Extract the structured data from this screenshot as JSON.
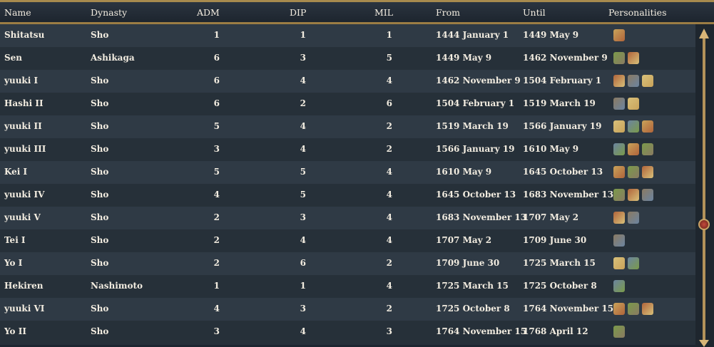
{
  "headers": {
    "name": "Name",
    "dynasty": "Dynasty",
    "adm": "ADM",
    "dip": "DIP",
    "mil": "MIL",
    "from": "From",
    "until": "Until",
    "personalities": "Personalities"
  },
  "rows": [
    {
      "name": "Shitatsu",
      "dynasty": "Sho",
      "adm": "1",
      "dip": "1",
      "mil": "1",
      "from": "1444 January 1",
      "until": "1449 May 9",
      "traits": 1
    },
    {
      "name": "Sen",
      "dynasty": "Ashikaga",
      "adm": "6",
      "dip": "3",
      "mil": "5",
      "from": "1449 May 9",
      "until": "1462 November 9",
      "traits": 2
    },
    {
      "name": "yuuki I",
      "dynasty": "Sho",
      "adm": "6",
      "dip": "4",
      "mil": "4",
      "from": "1462 November 9",
      "until": "1504 February 1",
      "traits": 3
    },
    {
      "name": "Hashi II",
      "dynasty": "Sho",
      "adm": "6",
      "dip": "2",
      "mil": "6",
      "from": "1504 February 1",
      "until": "1519 March 19",
      "traits": 2
    },
    {
      "name": "yuuki II",
      "dynasty": "Sho",
      "adm": "5",
      "dip": "4",
      "mil": "2",
      "from": "1519 March 19",
      "until": "1566 January 19",
      "traits": 3
    },
    {
      "name": "yuuki III",
      "dynasty": "Sho",
      "adm": "3",
      "dip": "4",
      "mil": "2",
      "from": "1566 January 19",
      "until": "1610 May 9",
      "traits": 3
    },
    {
      "name": "Kei I",
      "dynasty": "Sho",
      "adm": "5",
      "dip": "5",
      "mil": "4",
      "from": "1610 May 9",
      "until": "1645 October 13",
      "traits": 3
    },
    {
      "name": "yuuki IV",
      "dynasty": "Sho",
      "adm": "4",
      "dip": "5",
      "mil": "4",
      "from": "1645 October 13",
      "until": "1683 November 13",
      "traits": 3
    },
    {
      "name": "yuuki V",
      "dynasty": "Sho",
      "adm": "2",
      "dip": "3",
      "mil": "4",
      "from": "1683 November 13",
      "until": "1707 May 2",
      "traits": 2
    },
    {
      "name": "Tei I",
      "dynasty": "Sho",
      "adm": "2",
      "dip": "4",
      "mil": "4",
      "from": "1707 May 2",
      "until": "1709 June 30",
      "traits": 1
    },
    {
      "name": "Yo I",
      "dynasty": "Sho",
      "adm": "2",
      "dip": "6",
      "mil": "2",
      "from": "1709 June 30",
      "until": "1725 March 15",
      "traits": 2
    },
    {
      "name": "Hekiren",
      "dynasty": "Nashimoto",
      "adm": "1",
      "dip": "1",
      "mil": "4",
      "from": "1725 March 15",
      "until": "1725 October 8",
      "traits": 1
    },
    {
      "name": "yuuki VI",
      "dynasty": "Sho",
      "adm": "4",
      "dip": "3",
      "mil": "2",
      "from": "1725 October 8",
      "until": "1764 November 15",
      "traits": 3
    },
    {
      "name": "Yo II",
      "dynasty": "Sho",
      "adm": "3",
      "dip": "4",
      "mil": "3",
      "from": "1764 November 15",
      "until": "1768 April 12",
      "traits": 1
    }
  ],
  "colors": {
    "header_border": "#9c7d44",
    "row_a": "#2f3a45",
    "row_b": "#263039",
    "text": "#f2ece0"
  }
}
